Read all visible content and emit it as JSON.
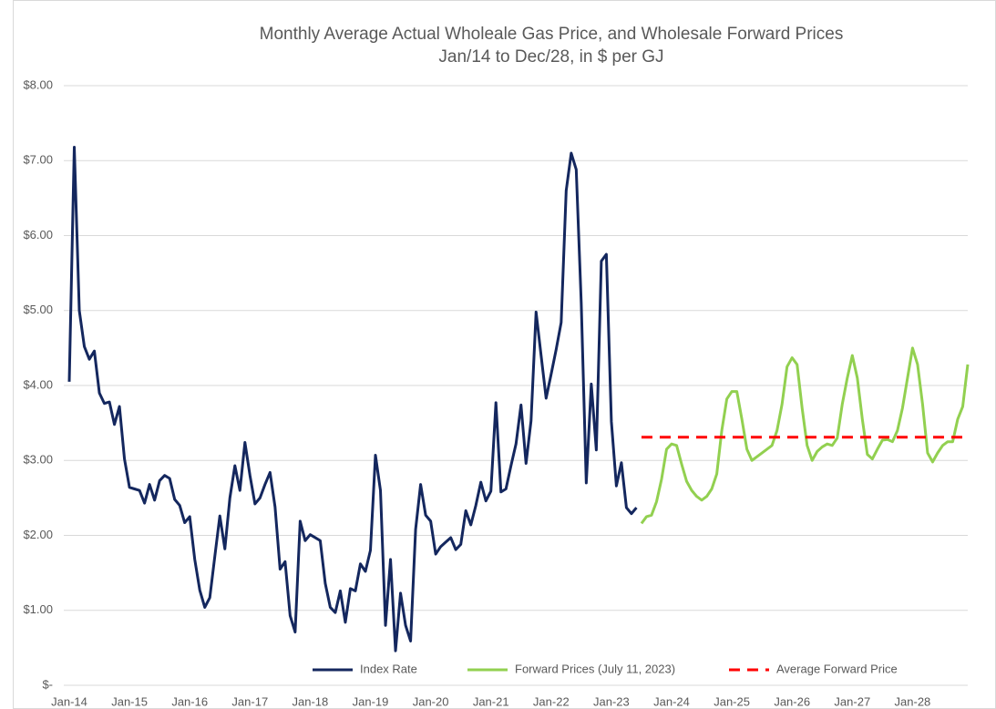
{
  "chart_data": {
    "type": "line",
    "title": "Monthly Average Actual Wholeale Gas Price, and Wholesale Forward Prices",
    "subtitle": "Jan/14 to Dec/28, in $ per GJ",
    "categories": [
      "Jan-14",
      null,
      null,
      null,
      null,
      null,
      null,
      null,
      null,
      null,
      null,
      null,
      "Jan-15",
      null,
      null,
      null,
      null,
      null,
      null,
      null,
      null,
      null,
      null,
      null,
      "Jan-16",
      null,
      null,
      null,
      null,
      null,
      null,
      null,
      null,
      null,
      null,
      null,
      "Jan-17",
      null,
      null,
      null,
      null,
      null,
      null,
      null,
      null,
      null,
      null,
      null,
      "Jan-18",
      null,
      null,
      null,
      null,
      null,
      null,
      null,
      null,
      null,
      null,
      null,
      "Jan-19",
      null,
      null,
      null,
      null,
      null,
      null,
      null,
      null,
      null,
      null,
      null,
      "Jan-20",
      null,
      null,
      null,
      null,
      null,
      null,
      null,
      null,
      null,
      null,
      null,
      "Jan-21",
      null,
      null,
      null,
      null,
      null,
      null,
      null,
      null,
      null,
      null,
      null,
      "Jan-22",
      null,
      null,
      null,
      null,
      null,
      null,
      null,
      null,
      null,
      null,
      null,
      "Jan-23",
      null,
      null,
      null,
      null,
      null,
      null,
      null,
      null,
      null,
      null,
      null,
      "Jan-24",
      null,
      null,
      null,
      null,
      null,
      null,
      null,
      null,
      null,
      null,
      null,
      "Jan-25",
      null,
      null,
      null,
      null,
      null,
      null,
      null,
      null,
      null,
      null,
      null,
      "Jan-26",
      null,
      null,
      null,
      null,
      null,
      null,
      null,
      null,
      null,
      null,
      null,
      "Jan-27",
      null,
      null,
      null,
      null,
      null,
      null,
      null,
      null,
      null,
      null,
      null,
      "Jan-28",
      null,
      null,
      null,
      null,
      null,
      null,
      null,
      null,
      null,
      null,
      null
    ],
    "series": [
      {
        "name": "Index Rate",
        "color": "#14275e",
        "dash": false,
        "values": [
          4.05,
          7.18,
          5.0,
          4.52,
          4.35,
          4.46,
          3.9,
          3.76,
          3.78,
          3.48,
          3.72,
          3.02,
          2.64,
          2.62,
          2.6,
          2.43,
          2.68,
          2.47,
          2.73,
          2.8,
          2.76,
          2.48,
          2.4,
          2.17,
          2.25,
          1.68,
          1.27,
          1.04,
          1.17,
          1.72,
          2.26,
          1.82,
          2.5,
          2.93,
          2.6,
          3.24,
          2.8,
          2.42,
          2.5,
          2.68,
          2.84,
          2.38,
          1.55,
          1.65,
          0.93,
          0.71,
          2.19,
          1.93,
          2.01,
          1.97,
          1.93,
          1.36,
          1.04,
          0.97,
          1.26,
          0.84,
          1.29,
          1.26,
          1.62,
          1.52,
          1.8,
          3.07,
          2.6,
          0.8,
          1.68,
          0.46,
          1.23,
          0.8,
          0.59,
          2.08,
          2.68,
          2.27,
          2.19,
          1.75,
          1.85,
          1.91,
          1.97,
          1.81,
          1.88,
          2.33,
          2.14,
          2.4,
          2.71,
          2.46,
          2.59,
          3.77,
          2.58,
          2.62,
          2.93,
          3.22,
          3.74,
          2.96,
          3.53,
          4.98,
          4.4,
          3.83,
          4.15,
          4.48,
          4.84,
          6.6,
          7.1,
          6.88,
          5.1,
          2.7,
          4.02,
          3.14,
          5.66,
          5.75,
          3.52,
          2.66,
          2.97,
          2.37,
          2.29,
          2.37,
          null,
          null,
          null,
          null,
          null,
          null,
          null,
          null,
          null,
          null,
          null,
          null,
          null,
          null,
          null,
          null,
          null,
          null,
          null,
          null,
          null,
          null,
          null,
          null,
          null,
          null,
          null,
          null,
          null,
          null,
          null,
          null,
          null,
          null,
          null,
          null,
          null,
          null,
          null,
          null,
          null,
          null,
          null,
          null,
          null,
          null,
          null,
          null,
          null,
          null,
          null,
          null,
          null,
          null,
          null,
          null,
          null,
          null,
          null,
          null,
          null,
          null,
          null,
          null,
          null,
          null
        ]
      },
      {
        "name": "Forward Prices (July 11, 2023)",
        "color": "#92d050",
        "dash": false,
        "values": [
          null,
          null,
          null,
          null,
          null,
          null,
          null,
          null,
          null,
          null,
          null,
          null,
          null,
          null,
          null,
          null,
          null,
          null,
          null,
          null,
          null,
          null,
          null,
          null,
          null,
          null,
          null,
          null,
          null,
          null,
          null,
          null,
          null,
          null,
          null,
          null,
          null,
          null,
          null,
          null,
          null,
          null,
          null,
          null,
          null,
          null,
          null,
          null,
          null,
          null,
          null,
          null,
          null,
          null,
          null,
          null,
          null,
          null,
          null,
          null,
          null,
          null,
          null,
          null,
          null,
          null,
          null,
          null,
          null,
          null,
          null,
          null,
          null,
          null,
          null,
          null,
          null,
          null,
          null,
          null,
          null,
          null,
          null,
          null,
          null,
          null,
          null,
          null,
          null,
          null,
          null,
          null,
          null,
          null,
          null,
          null,
          null,
          null,
          null,
          null,
          null,
          null,
          null,
          null,
          null,
          null,
          null,
          null,
          null,
          null,
          null,
          null,
          null,
          null,
          2.16,
          2.25,
          2.27,
          2.45,
          2.75,
          3.15,
          3.22,
          3.2,
          2.95,
          2.72,
          2.6,
          2.52,
          2.47,
          2.52,
          2.62,
          2.82,
          3.4,
          3.82,
          3.92,
          3.92,
          3.55,
          3.15,
          3.0,
          3.05,
          3.1,
          3.15,
          3.2,
          3.4,
          3.75,
          4.25,
          4.37,
          4.28,
          3.7,
          3.2,
          3.0,
          3.12,
          3.18,
          3.22,
          3.2,
          3.3,
          3.75,
          4.1,
          4.4,
          4.1,
          3.55,
          3.08,
          3.02,
          3.15,
          3.27,
          3.28,
          3.25,
          3.4,
          3.7,
          4.1,
          4.5,
          4.28,
          3.75,
          3.1,
          2.98,
          3.1,
          3.2,
          3.25,
          3.25,
          3.55,
          3.72,
          4.28
        ]
      },
      {
        "name": "Average Forward Price",
        "color": "#ff0000",
        "dash": true,
        "values": [
          null,
          null,
          null,
          null,
          null,
          null,
          null,
          null,
          null,
          null,
          null,
          null,
          null,
          null,
          null,
          null,
          null,
          null,
          null,
          null,
          null,
          null,
          null,
          null,
          null,
          null,
          null,
          null,
          null,
          null,
          null,
          null,
          null,
          null,
          null,
          null,
          null,
          null,
          null,
          null,
          null,
          null,
          null,
          null,
          null,
          null,
          null,
          null,
          null,
          null,
          null,
          null,
          null,
          null,
          null,
          null,
          null,
          null,
          null,
          null,
          null,
          null,
          null,
          null,
          null,
          null,
          null,
          null,
          null,
          null,
          null,
          null,
          null,
          null,
          null,
          null,
          null,
          null,
          null,
          null,
          null,
          null,
          null,
          null,
          null,
          null,
          null,
          null,
          null,
          null,
          null,
          null,
          null,
          null,
          null,
          null,
          null,
          null,
          null,
          null,
          null,
          null,
          null,
          null,
          null,
          null,
          null,
          null,
          null,
          null,
          null,
          null,
          null,
          null,
          3.31,
          3.31,
          3.31,
          3.31,
          3.31,
          3.31,
          3.31,
          3.31,
          3.31,
          3.31,
          3.31,
          3.31,
          3.31,
          3.31,
          3.31,
          3.31,
          3.31,
          3.31,
          3.31,
          3.31,
          3.31,
          3.31,
          3.31,
          3.31,
          3.31,
          3.31,
          3.31,
          3.31,
          3.31,
          3.31,
          3.31,
          3.31,
          3.31,
          3.31,
          3.31,
          3.31,
          3.31,
          3.31,
          3.31,
          3.31,
          3.31,
          3.31,
          3.31,
          3.31,
          3.31,
          3.31,
          3.31,
          3.31,
          3.31,
          3.31,
          3.31,
          3.31,
          3.31,
          3.31,
          3.31,
          3.31,
          3.31,
          3.31,
          3.31,
          3.31,
          3.31,
          3.31,
          3.31,
          3.31,
          3.31,
          3.31
        ]
      }
    ],
    "ylim": [
      0,
      8
    ],
    "yticks": [
      {
        "value": 0,
        "label": "$-"
      },
      {
        "value": 1,
        "label": "$1.00"
      },
      {
        "value": 2,
        "label": "$2.00"
      },
      {
        "value": 3,
        "label": "$3.00"
      },
      {
        "value": 4,
        "label": "$4.00"
      },
      {
        "value": 5,
        "label": "$5.00"
      },
      {
        "value": 6,
        "label": "$6.00"
      },
      {
        "value": 7,
        "label": "$7.00"
      },
      {
        "value": 8,
        "label": "$8.00"
      }
    ],
    "grid": true,
    "legend": "bottom"
  }
}
